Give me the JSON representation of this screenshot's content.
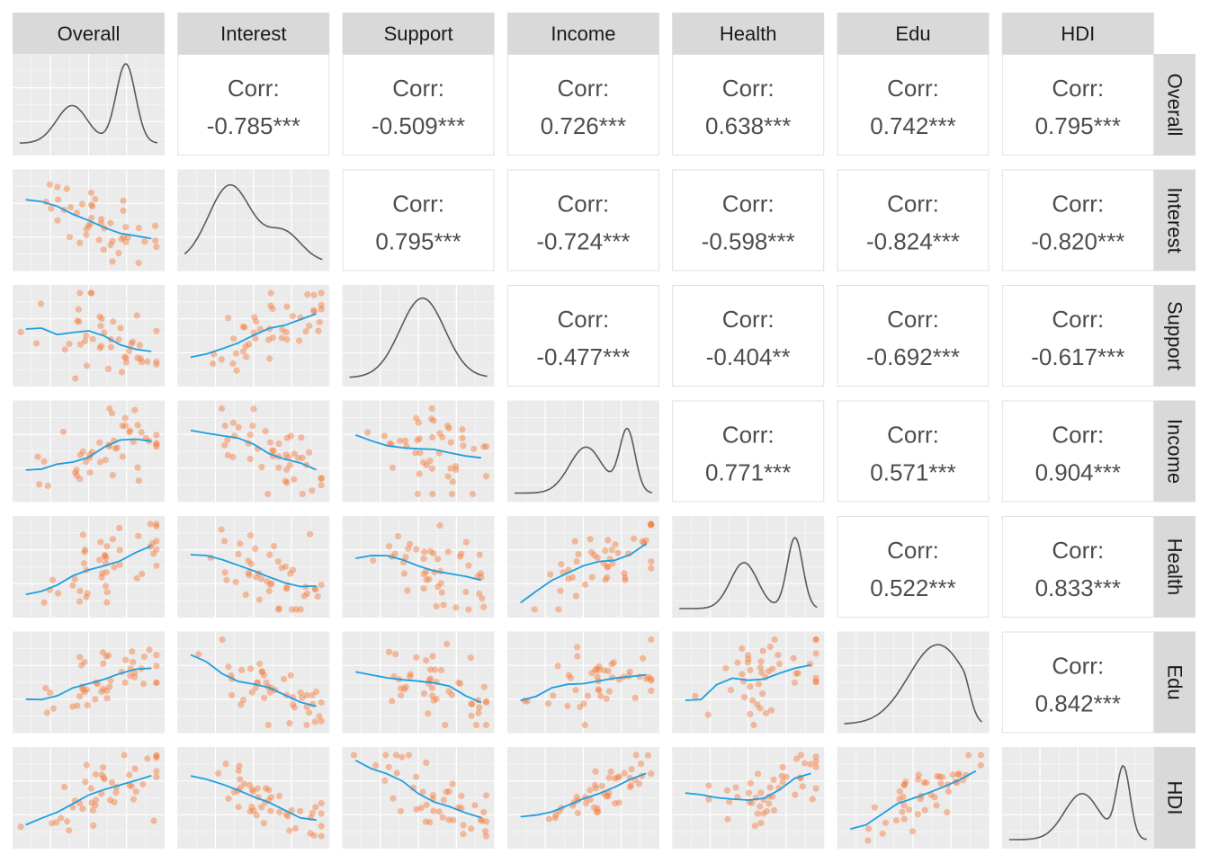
{
  "chart_data": {
    "type": "scatter",
    "variables": [
      "Overall",
      "Interest",
      "Support",
      "Income",
      "Health",
      "Edu",
      "HDI"
    ],
    "correlation_label": "Corr:",
    "correlations": [
      {
        "row": "Overall",
        "col": "Interest",
        "value": "-0.785***"
      },
      {
        "row": "Overall",
        "col": "Support",
        "value": "-0.509***"
      },
      {
        "row": "Overall",
        "col": "Income",
        "value": "0.726***"
      },
      {
        "row": "Overall",
        "col": "Health",
        "value": "0.638***"
      },
      {
        "row": "Overall",
        "col": "Edu",
        "value": "0.742***"
      },
      {
        "row": "Overall",
        "col": "HDI",
        "value": "0.795***"
      },
      {
        "row": "Interest",
        "col": "Support",
        "value": "0.795***"
      },
      {
        "row": "Interest",
        "col": "Income",
        "value": "-0.724***"
      },
      {
        "row": "Interest",
        "col": "Health",
        "value": "-0.598***"
      },
      {
        "row": "Interest",
        "col": "Edu",
        "value": "-0.824***"
      },
      {
        "row": "Interest",
        "col": "HDI",
        "value": "-0.820***"
      },
      {
        "row": "Support",
        "col": "Income",
        "value": "-0.477***"
      },
      {
        "row": "Support",
        "col": "Health",
        "value": "-0.404**"
      },
      {
        "row": "Support",
        "col": "Edu",
        "value": "-0.692***"
      },
      {
        "row": "Support",
        "col": "HDI",
        "value": "-0.617***"
      },
      {
        "row": "Income",
        "col": "Health",
        "value": "0.771***"
      },
      {
        "row": "Income",
        "col": "Edu",
        "value": "0.571***"
      },
      {
        "row": "Income",
        "col": "HDI",
        "value": "0.904***"
      },
      {
        "row": "Health",
        "col": "Edu",
        "value": "0.522***"
      },
      {
        "row": "Health",
        "col": "HDI",
        "value": "0.833***"
      },
      {
        "row": "Edu",
        "col": "HDI",
        "value": "0.842***"
      }
    ],
    "diagonal": "density",
    "lower": "scatter with smooth curve",
    "grid": true,
    "colors": {
      "panel_bg": "#ebebeb",
      "strip_bg": "#d9d9d9",
      "grid_line": "#ffffff",
      "density_line": "#595959",
      "point": "#f4793b",
      "smooth_line": "#1f9ee0",
      "corr_text": "#4d4d4d",
      "corr_border": "#e0e0e0"
    }
  }
}
